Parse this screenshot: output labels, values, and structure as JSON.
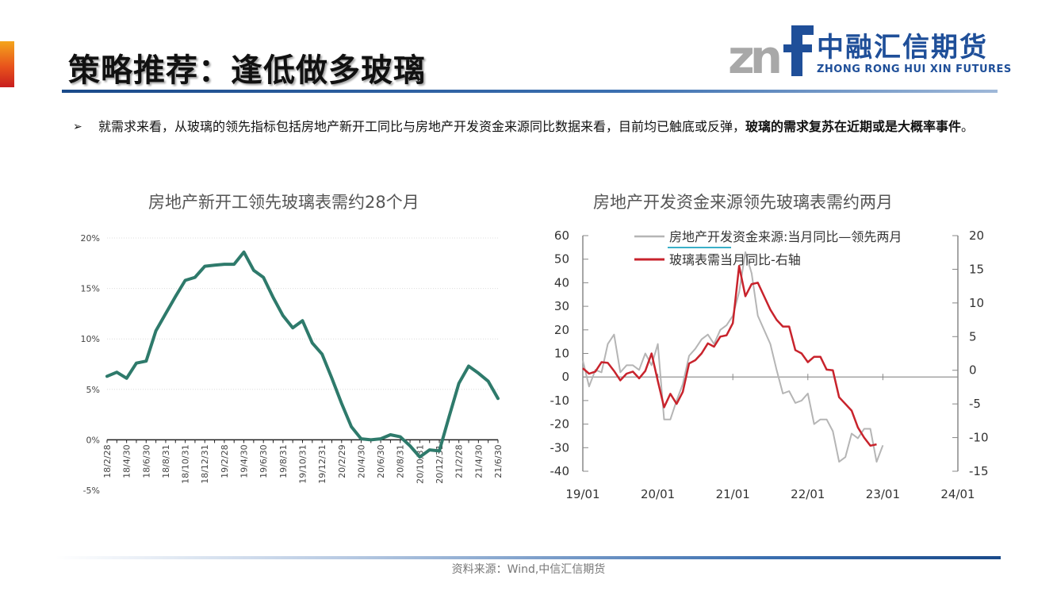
{
  "header": {
    "title": "策略推荐：逢低做多玻璃",
    "logo_cn": "中融汇信期货",
    "logo_en": "ZHONG RONG HUI XIN FUTURES",
    "logo_mark": "znf"
  },
  "bullet": {
    "text_normal": "就需求来看，从玻璃的领先指标包括房地产新开工同比与房地产开发资金来源同比数据来看，目前均已触底或反弹，",
    "text_bold": "玻璃的需求复苏在近期或是大概率事件",
    "text_end": "。"
  },
  "footer": {
    "source": "资料来源：Wind,中信汇信期货"
  },
  "colors": {
    "chart1_line": "#2e7a6b",
    "chart2_gray": "#b5b5b5",
    "chart2_red": "#c8232c",
    "legend_underline": "#3ab0c8",
    "brand_blue": "#1f4f99"
  },
  "chart_data": [
    {
      "type": "line",
      "title": "房地产新开工领先玻璃表需约28个月",
      "x_tick_labels": [
        "18/2/28",
        "18/4/30",
        "18/6/30",
        "18/8/31",
        "18/10/31",
        "18/12/31",
        "19/2/28",
        "19/4/30",
        "19/6/30",
        "19/8/31",
        "19/10/31",
        "19/12/31",
        "20/2/29",
        "20/4/30",
        "20/6/30",
        "20/8/31",
        "20/10/31",
        "20/12/31",
        "21/2/28",
        "21/4/30",
        "21/6/30"
      ],
      "y_tick_labels": [
        "20%",
        "15%",
        "10%",
        "5%",
        "0%",
        "-5%"
      ],
      "ylim": [
        -5,
        20
      ],
      "grid": true,
      "series": [
        {
          "values": [
            6.3,
            6.7,
            6.1,
            7.6,
            7.8,
            10.8,
            12.5,
            14.2,
            15.8,
            16.1,
            17.2,
            17.3,
            17.4,
            17.4,
            18.6,
            16.8,
            16.1,
            14.1,
            12.3,
            11.1,
            11.8,
            9.6,
            8.5,
            6.1,
            3.6,
            1.3,
            0.1,
            0.0,
            0.1,
            0.5,
            0.3,
            -0.6,
            -1.7,
            -1.0,
            -1.1,
            2.3,
            5.6,
            7.3,
            6.6,
            5.8,
            4.1
          ]
        }
      ]
    },
    {
      "type": "line",
      "title": "房地产开发资金来源领先玻璃表需约两月",
      "x_tick_labels": [
        "19/01",
        "20/01",
        "21/01",
        "22/01",
        "23/01",
        "24/01"
      ],
      "y_left_tick_labels": [
        "60",
        "50",
        "40",
        "30",
        "20",
        "10",
        "0",
        "-10",
        "-20",
        "-30",
        "-40"
      ],
      "y_right_tick_labels": [
        "20",
        "15",
        "10",
        "5",
        "0",
        "-5",
        "-10",
        "-15"
      ],
      "ylim_left": [
        -40,
        60
      ],
      "ylim_right": [
        -15,
        20
      ],
      "legend_position": "top",
      "series": [
        {
          "name": "房地产开发资金来源:当月同比—领先两月",
          "axis": "left",
          "x": [
            "19/01",
            "19/02",
            "19/03",
            "19/04",
            "19/05",
            "19/06",
            "19/07",
            "19/08",
            "19/09",
            "19/10",
            "19/11",
            "19/12",
            "20/01",
            "20/02",
            "20/03",
            "20/04",
            "20/05",
            "20/06",
            "20/07",
            "20/08",
            "20/09",
            "20/10",
            "20/11",
            "20/12",
            "21/01",
            "21/02",
            "21/03",
            "21/04",
            "21/05",
            "21/06",
            "21/07",
            "21/08",
            "21/09",
            "21/10",
            "21/11",
            "21/12",
            "22/01",
            "22/02",
            "22/03",
            "22/04",
            "22/05",
            "22/06",
            "22/07",
            "22/08",
            "22/09",
            "22/10",
            "22/11",
            "22/12",
            "23/01"
          ],
          "values": [
            7,
            -4,
            3,
            2,
            14,
            18,
            2,
            5,
            5,
            3,
            10,
            5,
            14,
            -18,
            -18,
            -10,
            -3,
            9,
            12,
            16,
            18,
            14,
            20,
            22,
            26,
            36,
            53,
            44,
            26,
            20,
            14,
            3,
            -7,
            -6,
            -11,
            -10,
            -7,
            -20,
            -18,
            -18,
            -23,
            -36,
            -34,
            -24,
            -26,
            -22,
            -22,
            -36,
            -29
          ]
        },
        {
          "name": "玻璃表需当月同比-右轴",
          "axis": "right",
          "x": [
            "19/01",
            "19/02",
            "19/03",
            "19/04",
            "19/05",
            "19/06",
            "19/07",
            "19/08",
            "19/09",
            "19/10",
            "19/11",
            "19/12",
            "20/01",
            "20/02",
            "20/03",
            "20/04",
            "20/05",
            "20/06",
            "20/07",
            "20/08",
            "20/09",
            "20/10",
            "20/11",
            "20/12",
            "21/01",
            "21/02",
            "21/03",
            "21/04",
            "21/05",
            "21/06",
            "21/07",
            "21/08",
            "21/09",
            "21/10",
            "21/11",
            "21/12",
            "22/01",
            "22/02",
            "22/03",
            "22/04",
            "22/05",
            "22/06",
            "22/07",
            "22/08",
            "22/09",
            "22/10",
            "22/11",
            "22/12"
          ],
          "values": [
            0.3,
            -0.5,
            -0.2,
            1.2,
            1.1,
            -0.1,
            -1.5,
            -0.5,
            -0.2,
            -1.2,
            -0.1,
            2.5,
            -1.6,
            -5.5,
            -3.5,
            -5,
            -3.2,
            1,
            1.5,
            2.5,
            4,
            3.5,
            5,
            5.2,
            7,
            15.5,
            11,
            12.8,
            13,
            11,
            9,
            7.5,
            6.5,
            6.5,
            3,
            2.5,
            1.2,
            2,
            2,
            0.1,
            0,
            -4,
            -5,
            -6,
            -8.5,
            -10,
            -11.2,
            -11
          ]
        }
      ]
    }
  ]
}
